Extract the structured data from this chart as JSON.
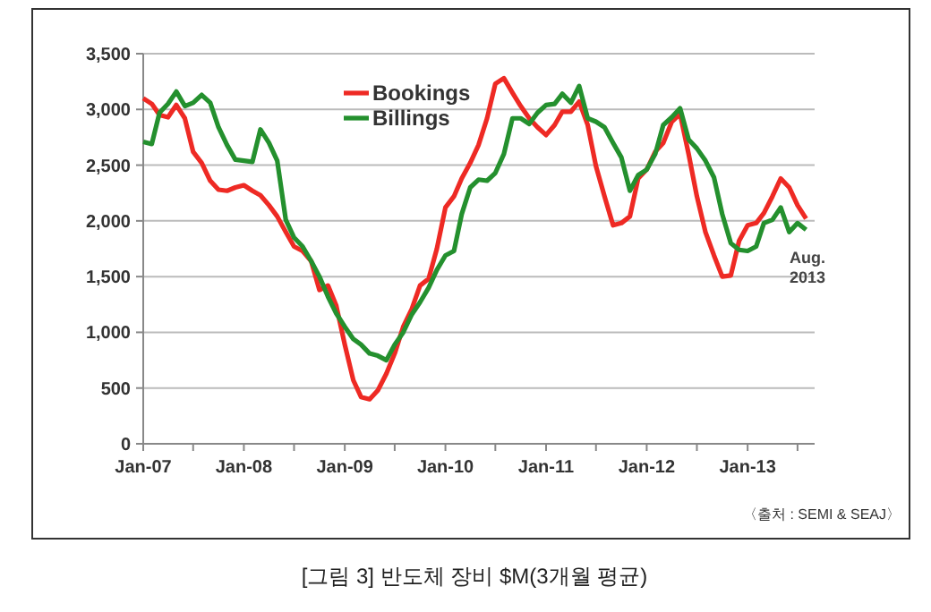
{
  "chart_data": {
    "type": "line",
    "title": "[그림 3] 반도체 장비  $M(3개월 평균)",
    "x": [
      "2007-01",
      "2007-02",
      "2007-03",
      "2007-04",
      "2007-05",
      "2007-06",
      "2007-07",
      "2007-08",
      "2007-09",
      "2007-10",
      "2007-11",
      "2007-12",
      "2008-01",
      "2008-02",
      "2008-03",
      "2008-04",
      "2008-05",
      "2008-06",
      "2008-07",
      "2008-08",
      "2008-09",
      "2008-10",
      "2008-11",
      "2008-12",
      "2009-01",
      "2009-02",
      "2009-03",
      "2009-04",
      "2009-05",
      "2009-06",
      "2009-07",
      "2009-08",
      "2009-09",
      "2009-10",
      "2009-11",
      "2009-12",
      "2010-01",
      "2010-02",
      "2010-03",
      "2010-04",
      "2010-05",
      "2010-06",
      "2010-07",
      "2010-08",
      "2010-09",
      "2010-10",
      "2010-11",
      "2010-12",
      "2011-01",
      "2011-02",
      "2011-03",
      "2011-04",
      "2011-05",
      "2011-06",
      "2011-07",
      "2011-08",
      "2011-09",
      "2011-10",
      "2011-11",
      "2011-12",
      "2012-01",
      "2012-02",
      "2012-03",
      "2012-04",
      "2012-05",
      "2012-06",
      "2012-07",
      "2012-08",
      "2012-09",
      "2012-10",
      "2012-11",
      "2012-12",
      "2013-01",
      "2013-02",
      "2013-03",
      "2013-04",
      "2013-05",
      "2013-06",
      "2013-07",
      "2013-08"
    ],
    "series": [
      {
        "name": "Bookings",
        "color": "#ee2a24",
        "values": [
          3100,
          3050,
          2950,
          2930,
          3040,
          2920,
          2620,
          2520,
          2360,
          2280,
          2270,
          2300,
          2320,
          2270,
          2230,
          2140,
          2040,
          1900,
          1770,
          1730,
          1640,
          1380,
          1420,
          1240,
          890,
          570,
          420,
          400,
          480,
          630,
          810,
          1050,
          1210,
          1420,
          1480,
          1750,
          2120,
          2220,
          2380,
          2520,
          2680,
          2920,
          3230,
          3280,
          3150,
          3030,
          2920,
          2840,
          2770,
          2860,
          2980,
          2980,
          3070,
          2860,
          2490,
          2220,
          1960,
          1980,
          2040,
          2380,
          2460,
          2620,
          2700,
          2890,
          2960,
          2600,
          2220,
          1900,
          1690,
          1500,
          1510,
          1820,
          1960,
          1980,
          2070,
          2220,
          2380,
          2300,
          2140,
          2020
        ]
      },
      {
        "name": "Billings",
        "color": "#24902e",
        "values": [
          2710,
          2690,
          2970,
          3050,
          3160,
          3030,
          3060,
          3130,
          3060,
          2840,
          2680,
          2550,
          2540,
          2530,
          2820,
          2700,
          2540,
          2010,
          1850,
          1770,
          1640,
          1500,
          1320,
          1170,
          1050,
          940,
          890,
          810,
          790,
          750,
          890,
          1000,
          1160,
          1270,
          1400,
          1560,
          1690,
          1730,
          2060,
          2300,
          2370,
          2360,
          2430,
          2600,
          2920,
          2920,
          2870,
          2970,
          3040,
          3050,
          3140,
          3060,
          3210,
          2920,
          2890,
          2840,
          2700,
          2570,
          2270,
          2410,
          2460,
          2600,
          2860,
          2930,
          3010,
          2730,
          2650,
          2540,
          2390,
          2060,
          1800,
          1740,
          1730,
          1770,
          1980,
          2010,
          2120,
          1900,
          1980,
          1920
        ]
      }
    ],
    "xlim": [
      "2007-01",
      "2013-09"
    ],
    "xticks": [
      {
        "value": "2007-01",
        "label": "Jan-07"
      },
      {
        "value": "2007-07",
        "label": null
      },
      {
        "value": "2008-01",
        "label": "Jan-08"
      },
      {
        "value": "2008-07",
        "label": null
      },
      {
        "value": "2009-01",
        "label": "Jan-09"
      },
      {
        "value": "2009-07",
        "label": null
      },
      {
        "value": "2010-01",
        "label": "Jan-10"
      },
      {
        "value": "2010-07",
        "label": null
      },
      {
        "value": "2011-01",
        "label": "Jan-11"
      },
      {
        "value": "2011-07",
        "label": null
      },
      {
        "value": "2012-01",
        "label": "Jan-12"
      },
      {
        "value": "2012-07",
        "label": null
      },
      {
        "value": "2013-01",
        "label": "Jan-13"
      },
      {
        "value": "2013-07",
        "label": null
      }
    ],
    "ylim": [
      0,
      3500
    ],
    "yticks": [
      {
        "value": 0,
        "label": "0"
      },
      {
        "value": 500,
        "label": "500"
      },
      {
        "value": 1000,
        "label": "1,000"
      },
      {
        "value": 1500,
        "label": "1,500"
      },
      {
        "value": 2000,
        "label": "2,000"
      },
      {
        "value": 2500,
        "label": "2,500"
      },
      {
        "value": 3000,
        "label": "3,000"
      },
      {
        "value": 3500,
        "label": "3,500"
      }
    ],
    "grid": "y",
    "legend": "top",
    "marker": "none",
    "line_style": "solid",
    "annotations": [
      "Aug.\n2013",
      "〈출처 : SEMI & SEAJ〉"
    ]
  }
}
